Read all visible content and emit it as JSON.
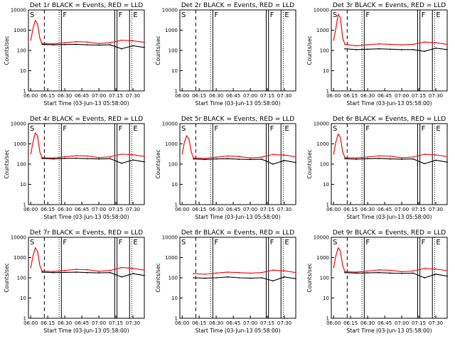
{
  "figure": {
    "xtick_labels": [
      "06:00",
      "06:15",
      "06:30",
      "06:45",
      "07:00",
      "07:15",
      "07:30"
    ],
    "ytick_labels": [
      "1",
      "10",
      "100",
      "1000",
      "10000"
    ],
    "ylabel": "Counts/sec",
    "xlabel": "Start Time (03-Jun-13 05:58:00)",
    "colors": {
      "events": "#000000",
      "lld": "#ff0000",
      "axes": "#000000"
    }
  },
  "chart_data": [
    {
      "type": "line",
      "title": "Det 1r BLACK = Events, RED = LLD",
      "xlabel": "Start Time (03-Jun-13 05:58:00)",
      "ylabel": "Counts/sec",
      "x_unit": "minutes after 06:00",
      "xlim": [
        -2,
        100
      ],
      "ylim": [
        1,
        10000
      ],
      "yscale": "log",
      "flare_peak": 3000,
      "markers": [
        "S",
        "F",
        "F",
        "E"
      ],
      "x_markers": [
        -2,
        27,
        76,
        89
      ],
      "series": [
        {
          "name": "Events",
          "x": [
            10,
            20,
            30,
            40,
            50,
            60,
            70,
            80,
            90,
            100
          ],
          "values": [
            200,
            190,
            195,
            200,
            190,
            185,
            190,
            120,
            170,
            140
          ]
        },
        {
          "name": "LLD",
          "x": [
            10,
            20,
            30,
            40,
            50,
            60,
            70,
            80,
            90,
            100
          ],
          "values": [
            220,
            210,
            240,
            270,
            260,
            220,
            240,
            320,
            300,
            250
          ]
        }
      ]
    },
    {
      "type": "line",
      "title": "Det 2r BLACK = Events, RED = LLD",
      "xlabel": "Start Time (03-Jun-13 05:58:00)",
      "ylabel": "Counts/sec",
      "x_unit": "minutes after 06:00",
      "xlim": [
        -2,
        100
      ],
      "ylim": [
        1,
        10000
      ],
      "yscale": "log",
      "flare_peak": null,
      "markers": [
        "S",
        "F",
        "F",
        "E"
      ],
      "x_markers": [
        -2,
        27,
        76,
        89
      ],
      "series": []
    },
    {
      "type": "line",
      "title": "Det 3r BLACK = Events, RED = LLD",
      "xlabel": "Start Time (03-Jun-13 05:58:00)",
      "ylabel": "Counts/sec",
      "x_unit": "minutes after 06:00",
      "xlim": [
        -2,
        100
      ],
      "ylim": [
        1,
        10000
      ],
      "yscale": "log",
      "flare_peak": 6000,
      "markers": [
        "S",
        "F",
        "F",
        "E"
      ],
      "x_markers": [
        -2,
        27,
        76,
        89
      ],
      "series": [
        {
          "name": "Events",
          "x": [
            10,
            20,
            30,
            40,
            50,
            60,
            70,
            80,
            90,
            100
          ],
          "values": [
            120,
            110,
            115,
            120,
            115,
            110,
            110,
            90,
            130,
            110
          ]
        },
        {
          "name": "LLD",
          "x": [
            10,
            20,
            30,
            40,
            50,
            60,
            70,
            80,
            90,
            100
          ],
          "values": [
            200,
            170,
            190,
            210,
            200,
            190,
            200,
            260,
            240,
            200
          ]
        }
      ]
    },
    {
      "type": "line",
      "title": "Det 4r BLACK = Events, RED = LLD",
      "xlabel": "Start Time (03-Jun-13 05:58:00)",
      "ylabel": "Counts/sec",
      "x_unit": "minutes after 06:00",
      "xlim": [
        -2,
        100
      ],
      "ylim": [
        1,
        10000
      ],
      "yscale": "log",
      "flare_peak": 3500,
      "markers": [
        "S",
        "F",
        "F",
        "E"
      ],
      "x_markers": [
        -2,
        27,
        76,
        89
      ],
      "series": [
        {
          "name": "Events",
          "x": [
            10,
            20,
            30,
            40,
            50,
            60,
            70,
            80,
            90,
            100
          ],
          "values": [
            190,
            180,
            190,
            195,
            185,
            180,
            185,
            110,
            160,
            130
          ]
        },
        {
          "name": "LLD",
          "x": [
            10,
            20,
            30,
            40,
            50,
            60,
            70,
            80,
            90,
            100
          ],
          "values": [
            210,
            200,
            230,
            260,
            250,
            210,
            230,
            310,
            290,
            240
          ]
        }
      ]
    },
    {
      "type": "line",
      "title": "Det 5r BLACK = Events, RED = LLD",
      "xlabel": "Start Time (03-Jun-13 05:58:00)",
      "ylabel": "Counts/sec",
      "x_unit": "minutes after 06:00",
      "xlim": [
        -2,
        100
      ],
      "ylim": [
        1,
        10000
      ],
      "yscale": "log",
      "flare_peak": 2500,
      "markers": [
        "S",
        "F",
        "F",
        "E"
      ],
      "x_markers": [
        -2,
        27,
        76,
        89
      ],
      "series": [
        {
          "name": "Events",
          "x": [
            10,
            20,
            30,
            40,
            50,
            60,
            70,
            80,
            90,
            100
          ],
          "values": [
            180,
            170,
            180,
            185,
            175,
            170,
            175,
            100,
            150,
            120
          ]
        },
        {
          "name": "LLD",
          "x": [
            10,
            20,
            30,
            40,
            50,
            60,
            70,
            80,
            90,
            100
          ],
          "values": [
            200,
            190,
            220,
            250,
            240,
            200,
            220,
            300,
            280,
            230
          ]
        }
      ]
    },
    {
      "type": "line",
      "title": "Det 6r BLACK = Events, RED = LLD",
      "xlabel": "Start Time (03-Jun-13 05:58:00)",
      "ylabel": "Counts/sec",
      "x_unit": "minutes after 06:00",
      "xlim": [
        -2,
        100
      ],
      "ylim": [
        1,
        10000
      ],
      "yscale": "log",
      "flare_peak": 3000,
      "markers": [
        "S",
        "F",
        "F",
        "E"
      ],
      "x_markers": [
        -2,
        27,
        76,
        89
      ],
      "series": [
        {
          "name": "Events",
          "x": [
            10,
            20,
            30,
            40,
            50,
            60,
            70,
            80,
            90,
            100
          ],
          "values": [
            185,
            175,
            185,
            190,
            180,
            175,
            180,
            105,
            155,
            125
          ]
        },
        {
          "name": "LLD",
          "x": [
            10,
            20,
            30,
            40,
            50,
            60,
            70,
            80,
            90,
            100
          ],
          "values": [
            210,
            200,
            225,
            255,
            245,
            205,
            225,
            305,
            285,
            235
          ]
        }
      ]
    },
    {
      "type": "line",
      "title": "Det 7r BLACK = Events, RED = LLD",
      "xlabel": "Start Time (03-Jun-13 05:58:00)",
      "ylabel": "Counts/sec",
      "x_unit": "minutes after 06:00",
      "xlim": [
        -2,
        100
      ],
      "ylim": [
        1,
        10000
      ],
      "yscale": "log",
      "flare_peak": 3000,
      "markers": [
        "S",
        "F",
        "F",
        "E"
      ],
      "x_markers": [
        -2,
        27,
        76,
        89
      ],
      "series": [
        {
          "name": "Events",
          "x": [
            10,
            20,
            30,
            40,
            50,
            60,
            70,
            80,
            90,
            100
          ],
          "values": [
            190,
            180,
            185,
            190,
            180,
            175,
            180,
            110,
            160,
            130
          ]
        },
        {
          "name": "LLD",
          "x": [
            10,
            20,
            30,
            40,
            50,
            60,
            70,
            80,
            90,
            100
          ],
          "values": [
            215,
            205,
            230,
            260,
            250,
            210,
            230,
            320,
            290,
            240
          ]
        }
      ]
    },
    {
      "type": "line",
      "title": "Det 8r BLACK = Events, RED = LLD",
      "xlabel": "Start Time (03-Jun-13 05:58:00)",
      "ylabel": "Counts/sec",
      "x_unit": "minutes after 06:00",
      "xlim": [
        -2,
        100
      ],
      "ylim": [
        1,
        10000
      ],
      "yscale": "log",
      "flare_peak": null,
      "markers": [
        "S",
        "F",
        "F",
        "E"
      ],
      "x_markers": [
        -2,
        27,
        76,
        89
      ],
      "series": [
        {
          "name": "Events",
          "x": [
            10,
            20,
            30,
            40,
            50,
            60,
            70,
            80,
            90,
            100
          ],
          "values": [
            100,
            95,
            100,
            110,
            100,
            95,
            100,
            70,
            110,
            90
          ]
        },
        {
          "name": "LLD",
          "x": [
            10,
            20,
            30,
            40,
            50,
            60,
            70,
            80,
            90,
            100
          ],
          "values": [
            160,
            150,
            170,
            190,
            180,
            170,
            180,
            240,
            220,
            180
          ]
        }
      ]
    },
    {
      "type": "line",
      "title": "Det 9r BLACK = Events, RED = LLD",
      "xlabel": "Start Time (03-Jun-13 05:58:00)",
      "ylabel": "Counts/sec",
      "x_unit": "minutes after 06:00",
      "xlim": [
        -2,
        100
      ],
      "ylim": [
        1,
        10000
      ],
      "yscale": "log",
      "flare_peak": 3000,
      "markers": [
        "S",
        "F",
        "F",
        "E"
      ],
      "x_markers": [
        -2,
        27,
        76,
        89
      ],
      "series": [
        {
          "name": "Events",
          "x": [
            10,
            20,
            30,
            40,
            50,
            60,
            70,
            80,
            90,
            100
          ],
          "values": [
            180,
            170,
            175,
            180,
            170,
            165,
            170,
            100,
            150,
            120
          ]
        },
        {
          "name": "LLD",
          "x": [
            10,
            20,
            30,
            40,
            50,
            60,
            70,
            80,
            90,
            100
          ],
          "values": [
            200,
            190,
            215,
            245,
            235,
            200,
            215,
            290,
            270,
            225
          ]
        }
      ]
    }
  ]
}
